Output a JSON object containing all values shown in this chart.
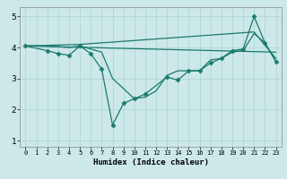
{
  "xlabel": "Humidex (Indice chaleur)",
  "bg_color": "#cce8e8",
  "line_color": "#1a7a6e",
  "grid_color": "#aad4d4",
  "xlim": [
    -0.5,
    23.5
  ],
  "ylim": [
    0.8,
    5.3
  ],
  "xticks": [
    0,
    1,
    2,
    3,
    4,
    5,
    6,
    7,
    8,
    9,
    10,
    11,
    12,
    13,
    14,
    15,
    16,
    17,
    18,
    19,
    20,
    21,
    22,
    23
  ],
  "yticks": [
    1,
    2,
    3,
    4,
    5
  ],
  "lines": [
    {
      "x": [
        0,
        2,
        3,
        4,
        5,
        6,
        7,
        8,
        9,
        10,
        11,
        13,
        14,
        15,
        16,
        17,
        18,
        19,
        20,
        21,
        22,
        23
      ],
      "y": [
        4.05,
        3.9,
        3.8,
        3.75,
        4.05,
        3.8,
        3.3,
        1.5,
        2.2,
        2.35,
        2.5,
        3.05,
        2.95,
        3.25,
        3.25,
        3.5,
        3.65,
        3.9,
        3.95,
        5.0,
        4.15,
        3.55
      ],
      "markers": true
    },
    {
      "x": [
        0,
        2,
        4,
        5,
        6,
        7,
        8,
        10,
        11,
        12,
        13,
        14,
        15,
        16,
        17,
        18,
        19,
        20,
        21,
        22,
        23
      ],
      "y": [
        4.05,
        4.05,
        4.0,
        4.05,
        3.95,
        3.85,
        3.0,
        2.35,
        2.4,
        2.6,
        3.1,
        3.25,
        3.25,
        3.25,
        3.6,
        3.65,
        3.85,
        3.9,
        4.45,
        4.15,
        3.55
      ],
      "markers": false
    },
    {
      "x": [
        0,
        5,
        21,
        23
      ],
      "y": [
        4.05,
        4.1,
        4.5,
        3.65
      ],
      "markers": false
    },
    {
      "x": [
        0,
        23
      ],
      "y": [
        4.05,
        3.85
      ],
      "markers": false
    }
  ]
}
